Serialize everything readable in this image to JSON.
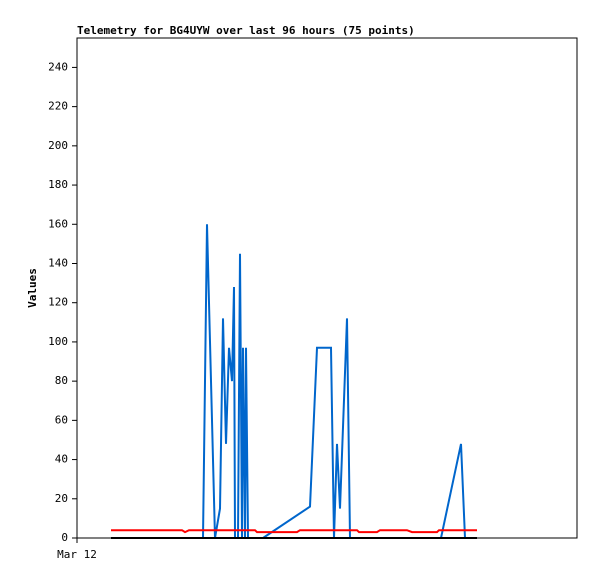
{
  "chart_data": {
    "type": "line",
    "title": "Telemetry for BG4UYW over last 96 hours (75 points)",
    "y_label": "Values",
    "xlim": [
      0,
      500
    ],
    "xticks": [
      {
        "value": 0,
        "label": "Mar 12"
      }
    ],
    "ylim": [
      0,
      255
    ],
    "yticks": [
      0,
      20,
      40,
      60,
      80,
      100,
      120,
      140,
      160,
      180,
      200,
      220,
      240
    ],
    "grid": false,
    "series": [
      {
        "color": "#0066cc",
        "x": [
          126,
          130,
          133,
          138,
          143,
          146,
          149,
          152,
          155,
          157,
          158,
          161,
          163,
          165,
          166,
          168,
          169,
          171,
          null,
          186,
          233,
          240,
          254,
          257,
          260,
          263,
          270,
          273,
          null,
          364,
          384,
          388
        ],
        "values": [
          0,
          160,
          100,
          0,
          15,
          112,
          48,
          97,
          80,
          128,
          0,
          0,
          145,
          0,
          97,
          0,
          97,
          0,
          null,
          0,
          16,
          97,
          97,
          0,
          48,
          15,
          112,
          0,
          null,
          0,
          48,
          0
        ]
      },
      {
        "color": "#ff0000",
        "x": [
          34,
          105,
          108,
          112,
          146,
          178,
          180,
          220,
          223,
          280,
          282,
          300,
          303,
          330,
          335,
          360,
          362,
          400
        ],
        "values": [
          4,
          4,
          3,
          4,
          4,
          4,
          3,
          3,
          4,
          4,
          3,
          3,
          4,
          4,
          3,
          3,
          4,
          4
        ]
      },
      {
        "color": "#000000",
        "x": [
          34,
          400
        ],
        "values": [
          0,
          0
        ]
      }
    ]
  }
}
